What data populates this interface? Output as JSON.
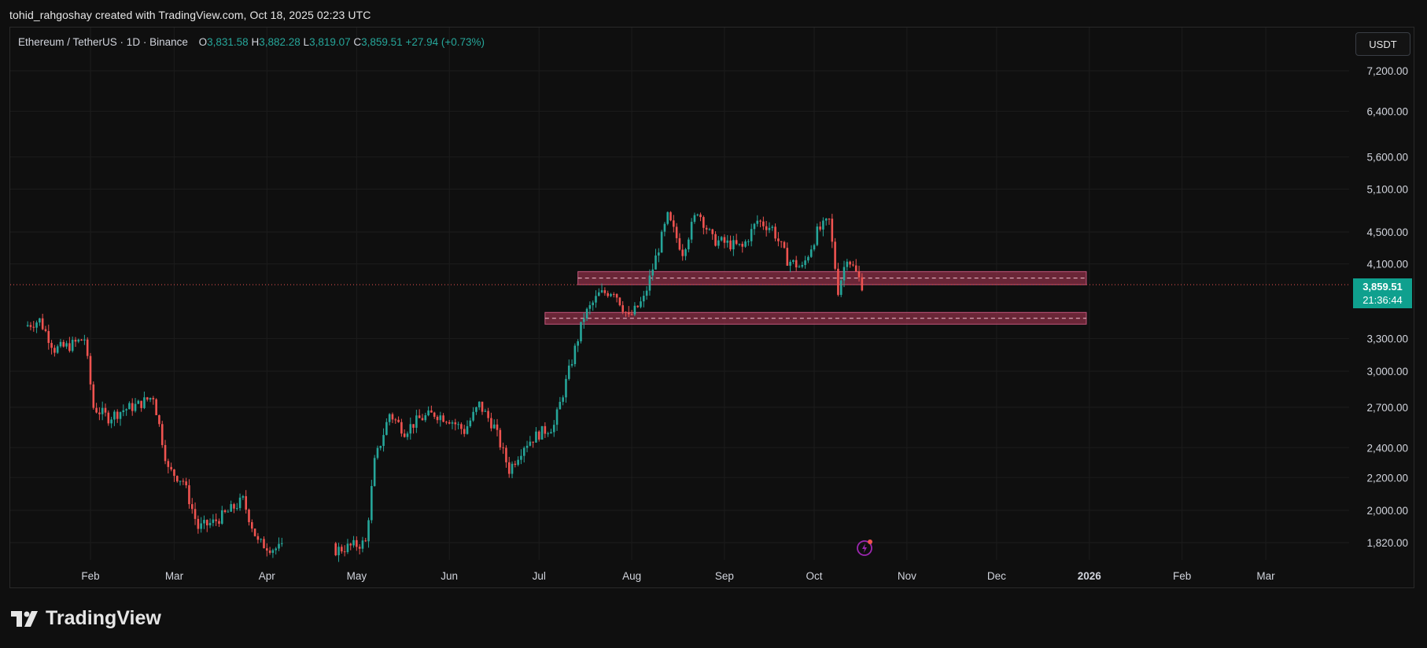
{
  "caption": "tohid_rahgoshay created with TradingView.com, Oct 18, 2025 02:23 UTC",
  "legend": {
    "symbol": "Ethereum / TetherUS · 1D · Binance",
    "open_label": "O",
    "open": "3,831.58",
    "high_label": "H",
    "high": "3,882.28",
    "low_label": "L",
    "low": "3,819.07",
    "close_label": "C",
    "close": "3,859.51",
    "change": "+27.94 (+0.73%)"
  },
  "currency": "USDT",
  "price_tag": {
    "price": "3,859.51",
    "countdown": "21:36:44"
  },
  "brand": "TradingView",
  "colors": {
    "up": "#26a69a",
    "down": "#ef5350",
    "zone_fill": "#8a2f45",
    "zone_border": "#c2557a",
    "grid": "#1c1c1c",
    "background": "#0f0f0f",
    "price_tag": "#0fa08e"
  },
  "chart_data": {
    "type": "candlestick",
    "scale": "log",
    "y_ticks": [
      "7,200.00",
      "6,400.00",
      "5,600.00",
      "5,100.00",
      "4,500.00",
      "4,100.00",
      "3,300.00",
      "3,000.00",
      "2,700.00",
      "2,400.00",
      "2,200.00",
      "2,000.00",
      "1,820.00"
    ],
    "y_tick_values": [
      7200,
      6400,
      5600,
      5100,
      4500,
      4100,
      3300,
      3000,
      2700,
      2400,
      2200,
      2000,
      1820
    ],
    "x_ticks": [
      "Feb",
      "Mar",
      "Apr",
      "May",
      "Jun",
      "Jul",
      "Aug",
      "Sep",
      "Oct",
      "Nov",
      "Dec",
      "2026",
      "Feb",
      "Mar"
    ],
    "x_tick_dates": [
      "2025-02-01",
      "2025-03-01",
      "2025-04-01",
      "2025-05-01",
      "2025-06-01",
      "2025-07-01",
      "2025-08-01",
      "2025-09-01",
      "2025-10-01",
      "2025-11-01",
      "2025-12-01",
      "2026-01-01",
      "2026-02-01",
      "2026-03-01"
    ],
    "last_price": 3859.51,
    "zones": [
      {
        "x_start": "2025-07-14",
        "x_end": "2025-12-31",
        "low": 3860,
        "high": 4010
      },
      {
        "x_start": "2025-07-03",
        "x_end": "2025-12-31",
        "low": 3440,
        "high": 3560
      }
    ],
    "candles": [
      {
        "date": "2025-01-11",
        "close": 3420
      },
      {
        "date": "2025-01-16",
        "close": 3480
      },
      {
        "date": "2025-01-21",
        "close": 3200
      },
      {
        "date": "2025-01-26",
        "close": 3230
      },
      {
        "date": "2025-01-31",
        "close": 3300
      },
      {
        "date": "2025-02-03",
        "close": 2700
      },
      {
        "date": "2025-02-08",
        "close": 2620
      },
      {
        "date": "2025-02-13",
        "close": 2680
      },
      {
        "date": "2025-02-18",
        "close": 2720
      },
      {
        "date": "2025-02-23",
        "close": 2790
      },
      {
        "date": "2025-02-28",
        "close": 2250
      },
      {
        "date": "2025-03-05",
        "close": 2180
      },
      {
        "date": "2025-03-10",
        "close": 1900
      },
      {
        "date": "2025-03-15",
        "close": 1930
      },
      {
        "date": "2025-03-20",
        "close": 1990
      },
      {
        "date": "2025-03-25",
        "close": 2060
      },
      {
        "date": "2025-03-30",
        "close": 1820
      },
      {
        "date": "2025-04-04",
        "close": 1790
      },
      {
        "date": "2025-04-25",
        "close": 1780
      },
      {
        "date": "2025-04-30",
        "close": 1800
      },
      {
        "date": "2025-05-05",
        "close": 1820
      },
      {
        "date": "2025-05-08",
        "close": 2300
      },
      {
        "date": "2025-05-13",
        "close": 2650
      },
      {
        "date": "2025-05-18",
        "close": 2520
      },
      {
        "date": "2025-05-23",
        "close": 2610
      },
      {
        "date": "2025-05-28",
        "close": 2650
      },
      {
        "date": "2025-06-02",
        "close": 2610
      },
      {
        "date": "2025-06-07",
        "close": 2520
      },
      {
        "date": "2025-06-12",
        "close": 2720
      },
      {
        "date": "2025-06-17",
        "close": 2550
      },
      {
        "date": "2025-06-22",
        "close": 2250
      },
      {
        "date": "2025-06-27",
        "close": 2420
      },
      {
        "date": "2025-07-02",
        "close": 2500
      },
      {
        "date": "2025-07-07",
        "close": 2560
      },
      {
        "date": "2025-07-12",
        "close": 3000
      },
      {
        "date": "2025-07-17",
        "close": 3520
      },
      {
        "date": "2025-07-22",
        "close": 3750
      },
      {
        "date": "2025-07-27",
        "close": 3800
      },
      {
        "date": "2025-08-01",
        "close": 3500
      },
      {
        "date": "2025-08-06",
        "close": 3700
      },
      {
        "date": "2025-08-11",
        "close": 4300
      },
      {
        "date": "2025-08-14",
        "close": 4700
      },
      {
        "date": "2025-08-19",
        "close": 4250
      },
      {
        "date": "2025-08-24",
        "close": 4800
      },
      {
        "date": "2025-08-29",
        "close": 4400
      },
      {
        "date": "2025-09-03",
        "close": 4350
      },
      {
        "date": "2025-09-08",
        "close": 4300
      },
      {
        "date": "2025-09-13",
        "close": 4650
      },
      {
        "date": "2025-09-18",
        "close": 4550
      },
      {
        "date": "2025-09-23",
        "close": 4150
      },
      {
        "date": "2025-09-28",
        "close": 4050
      },
      {
        "date": "2025-10-03",
        "close": 4500
      },
      {
        "date": "2025-10-07",
        "close": 4650
      },
      {
        "date": "2025-10-10",
        "close": 3800
      },
      {
        "date": "2025-10-13",
        "close": 4200
      },
      {
        "date": "2025-10-18",
        "close": 3859.51
      }
    ]
  }
}
